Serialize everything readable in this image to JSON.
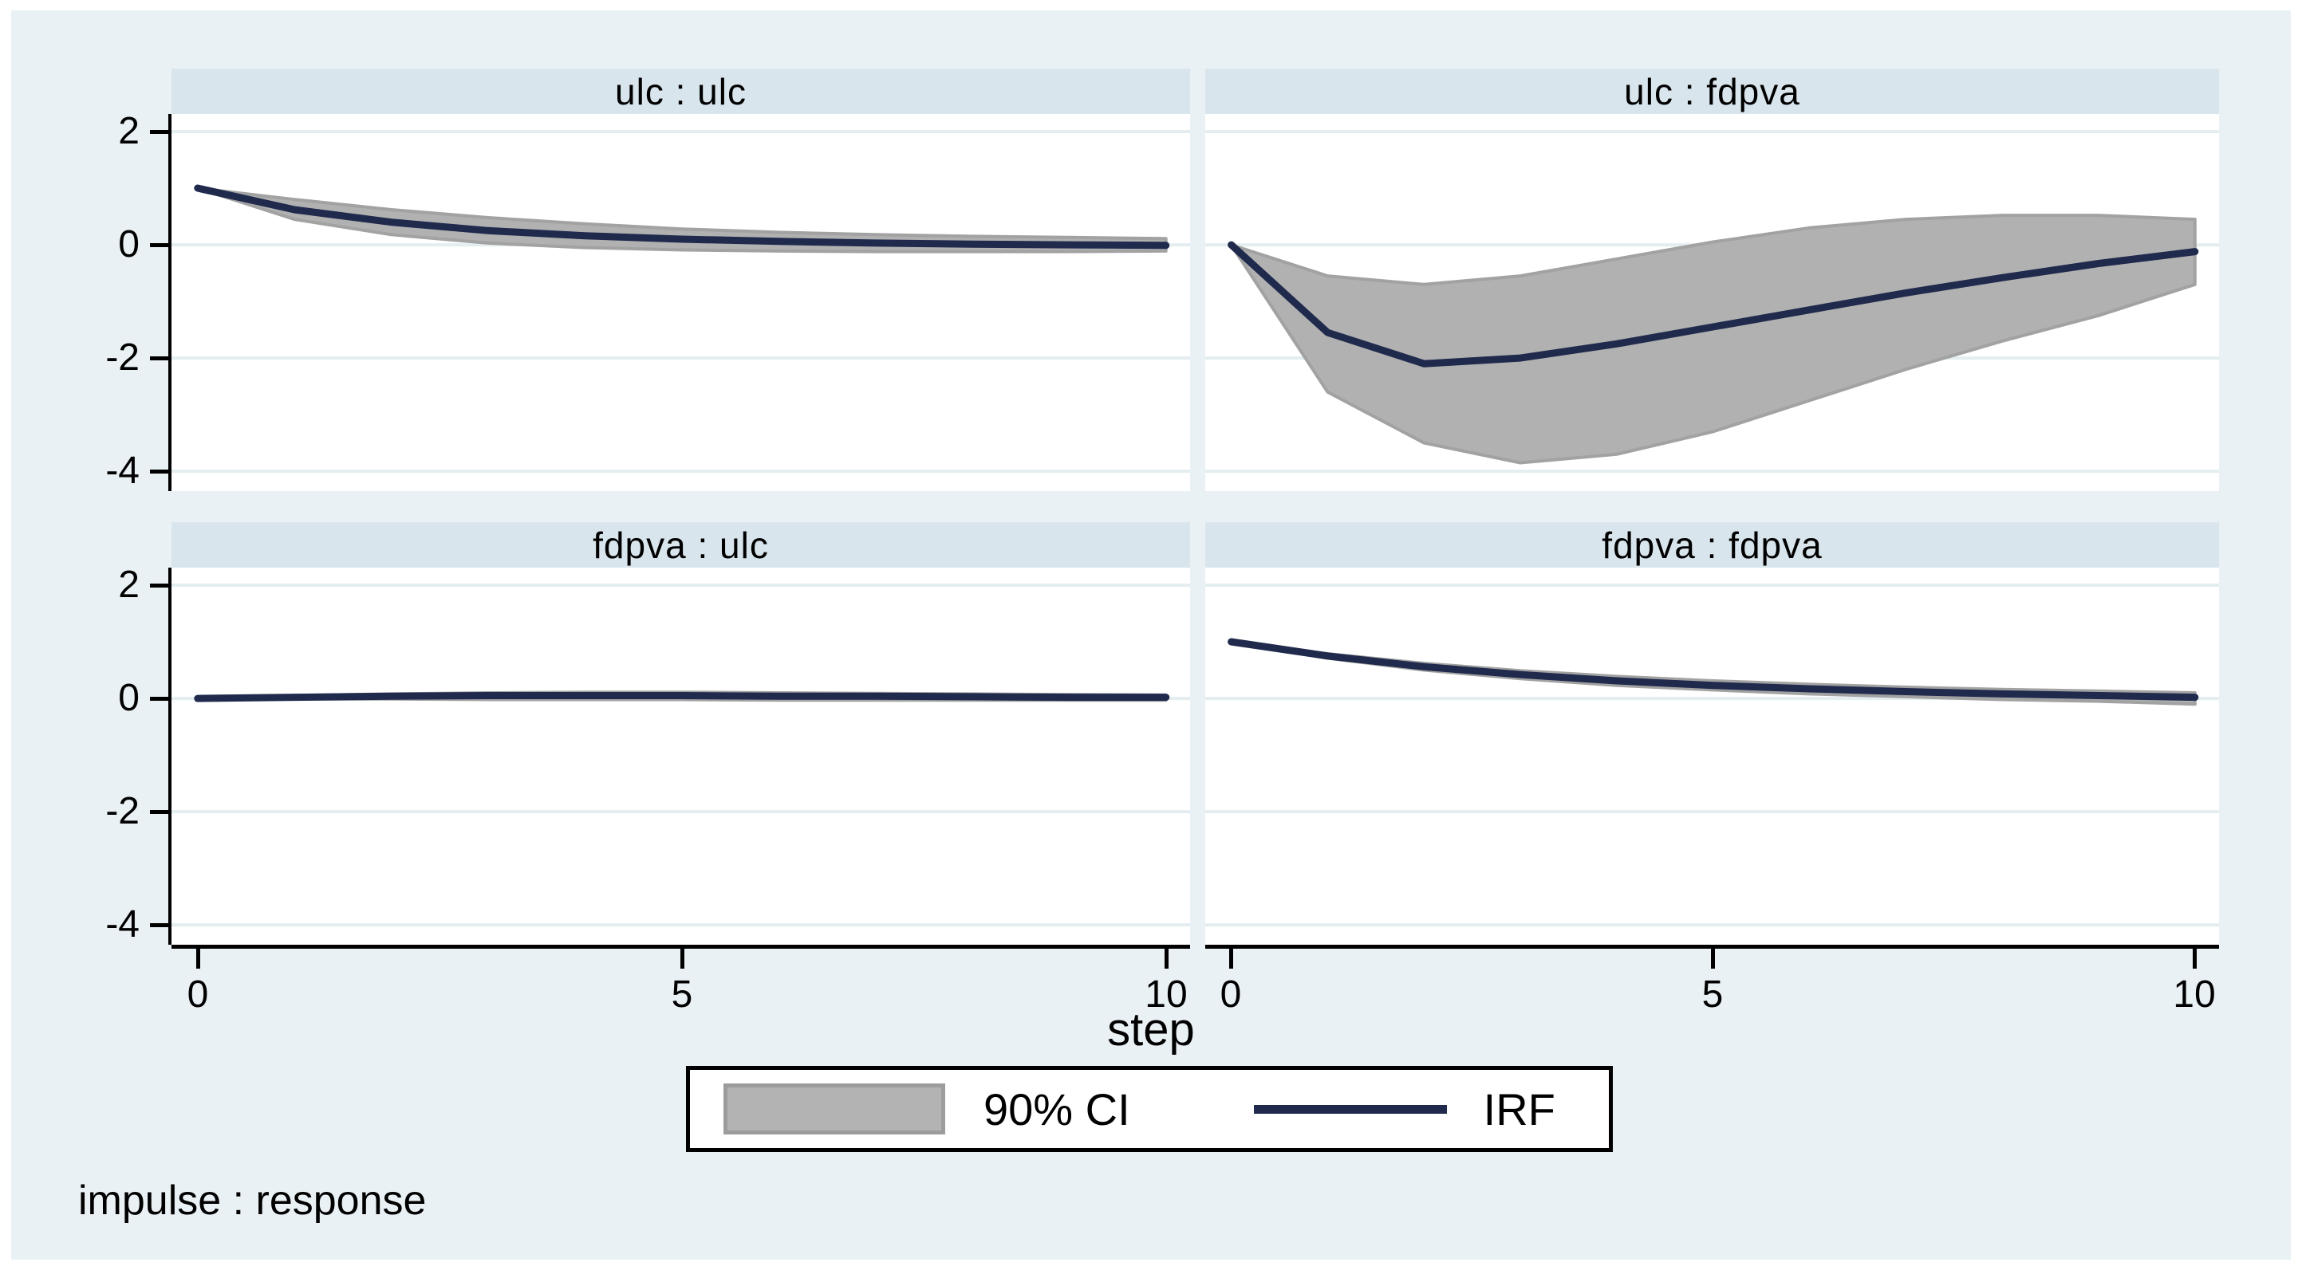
{
  "figure": {
    "xlabel": "step",
    "note": "impulse : response"
  },
  "legend": {
    "ci_label": "90% CI",
    "irf_label": "IRF"
  },
  "axes": {
    "y_ticks": [
      "2",
      "0",
      "-2",
      "-4"
    ],
    "x_ticks": [
      "0",
      "5",
      "10"
    ]
  },
  "panels": [
    {
      "title": "ulc : ulc"
    },
    {
      "title": "ulc : fdpva"
    },
    {
      "title": "fdpva : ulc"
    },
    {
      "title": "fdpva : fdpva"
    }
  ],
  "colors": {
    "page_background": "#ffffff",
    "canvas_background": "#eaf1f4",
    "panel_title_background": "#d9e5ec",
    "plot_background": "#ffffff",
    "gridline": "#e4edf0",
    "axis": "#000000",
    "ci_fill": "#b1b1b1",
    "ci_border": "#a2a2a2",
    "irf_line": "#1f2a4c"
  },
  "chart_data": [
    {
      "type": "area",
      "title": "ulc : ulc",
      "impulse": "ulc",
      "response": "ulc",
      "x": [
        0,
        1,
        2,
        3,
        4,
        5,
        6,
        7,
        8,
        9,
        10
      ],
      "series": [
        {
          "name": "IRF",
          "values": [
            1.0,
            0.62,
            0.4,
            0.25,
            0.16,
            0.1,
            0.06,
            0.03,
            0.01,
            0.0,
            -0.01
          ]
        },
        {
          "name": "90% CI upper",
          "values": [
            1.0,
            0.8,
            0.62,
            0.48,
            0.37,
            0.28,
            0.22,
            0.18,
            0.15,
            0.13,
            0.11
          ]
        },
        {
          "name": "90% CI lower",
          "values": [
            1.0,
            0.45,
            0.18,
            0.03,
            -0.05,
            -0.09,
            -0.11,
            -0.12,
            -0.12,
            -0.12,
            -0.11
          ]
        }
      ],
      "xlim": [
        -0.27,
        10.25
      ],
      "ylim": [
        -4.35,
        2.31
      ],
      "yticks": [
        2,
        0,
        -2,
        -4
      ],
      "xticks": [
        0,
        5,
        10
      ],
      "grid": true
    },
    {
      "type": "area",
      "title": "ulc : fdpva",
      "impulse": "ulc",
      "response": "fdpva",
      "x": [
        0,
        1,
        2,
        3,
        4,
        5,
        6,
        7,
        8,
        9,
        10
      ],
      "series": [
        {
          "name": "IRF",
          "values": [
            0.0,
            -1.55,
            -2.1,
            -2.0,
            -1.75,
            -1.45,
            -1.15,
            -0.85,
            -0.58,
            -0.33,
            -0.12
          ]
        },
        {
          "name": "90% CI upper",
          "values": [
            0.0,
            -0.55,
            -0.7,
            -0.55,
            -0.25,
            0.05,
            0.3,
            0.45,
            0.52,
            0.52,
            0.45
          ]
        },
        {
          "name": "90% CI lower",
          "values": [
            0.0,
            -2.6,
            -3.5,
            -3.85,
            -3.7,
            -3.3,
            -2.75,
            -2.2,
            -1.7,
            -1.25,
            -0.7
          ]
        }
      ],
      "xlim": [
        -0.27,
        10.25
      ],
      "ylim": [
        -4.35,
        2.31
      ],
      "yticks": [
        2,
        0,
        -2,
        -4
      ],
      "xticks": [
        0,
        5,
        10
      ],
      "grid": true
    },
    {
      "type": "area",
      "title": "fdpva : ulc",
      "impulse": "fdpva",
      "response": "ulc",
      "x": [
        0,
        1,
        2,
        3,
        4,
        5,
        6,
        7,
        8,
        9,
        10
      ],
      "series": [
        {
          "name": "IRF",
          "values": [
            0.0,
            0.02,
            0.04,
            0.05,
            0.05,
            0.05,
            0.04,
            0.04,
            0.03,
            0.02,
            0.02
          ]
        },
        {
          "name": "90% CI upper",
          "values": [
            0.0,
            0.05,
            0.08,
            0.1,
            0.11,
            0.11,
            0.1,
            0.09,
            0.08,
            0.07,
            0.06
          ]
        },
        {
          "name": "90% CI lower",
          "values": [
            0.0,
            -0.01,
            -0.01,
            -0.02,
            -0.02,
            -0.02,
            -0.03,
            -0.03,
            -0.03,
            -0.03,
            -0.03
          ]
        }
      ],
      "xlim": [
        -0.27,
        10.25
      ],
      "ylim": [
        -4.35,
        2.31
      ],
      "yticks": [
        2,
        0,
        -2,
        -4
      ],
      "xticks": [
        0,
        5,
        10
      ],
      "grid": true
    },
    {
      "type": "area",
      "title": "fdpva : fdpva",
      "impulse": "fdpva",
      "response": "fdpva",
      "x": [
        0,
        1,
        2,
        3,
        4,
        5,
        6,
        7,
        8,
        9,
        10
      ],
      "series": [
        {
          "name": "IRF",
          "values": [
            1.0,
            0.75,
            0.56,
            0.42,
            0.31,
            0.23,
            0.17,
            0.12,
            0.08,
            0.05,
            0.02
          ]
        },
        {
          "name": "90% CI upper",
          "values": [
            1.0,
            0.79,
            0.62,
            0.49,
            0.39,
            0.31,
            0.25,
            0.2,
            0.16,
            0.13,
            0.1
          ]
        },
        {
          "name": "90% CI lower",
          "values": [
            1.0,
            0.71,
            0.5,
            0.35,
            0.23,
            0.15,
            0.08,
            0.03,
            -0.02,
            -0.05,
            -0.1
          ]
        }
      ],
      "xlim": [
        -0.27,
        10.25
      ],
      "ylim": [
        -4.35,
        2.31
      ],
      "yticks": [
        2,
        0,
        -2,
        -4
      ],
      "xticks": [
        0,
        5,
        10
      ],
      "grid": true
    }
  ]
}
